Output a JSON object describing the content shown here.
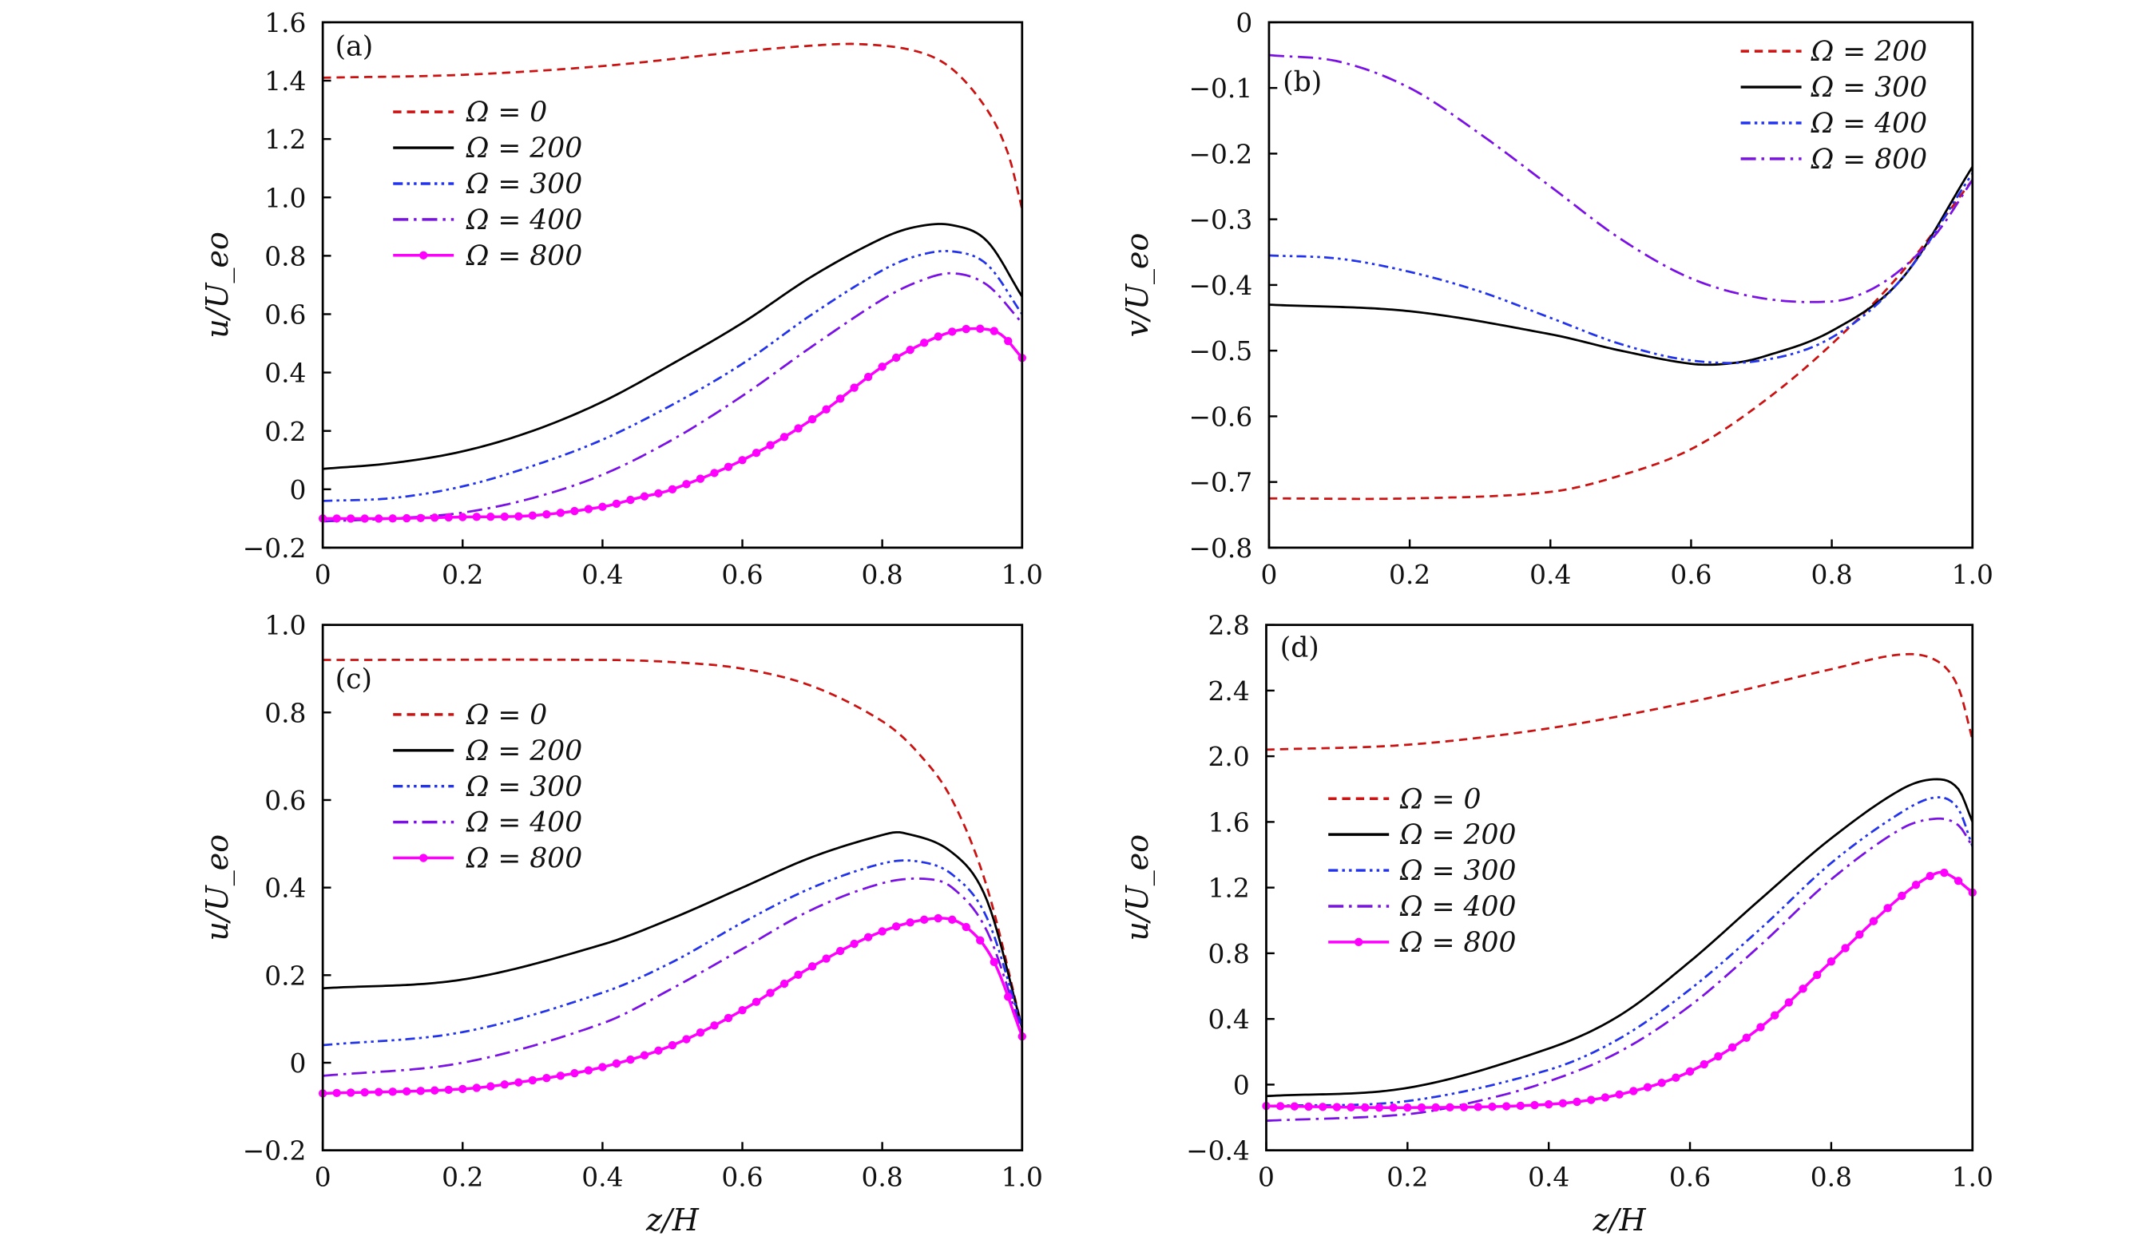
{
  "chart_data": [
    {
      "type": "line",
      "panel_label": "(a)",
      "xlabel": "",
      "ylabel": "u/U_eo",
      "xlim": [
        0,
        1.0
      ],
      "ylim": [
        -0.2,
        1.6
      ],
      "xticks": [
        "0",
        "0.2",
        "0.4",
        "0.6",
        "0.8",
        "1.0"
      ],
      "yticks": [
        "−0.2",
        "0",
        "0.2",
        "0.4",
        "0.6",
        "0.8",
        "1.0",
        "1.2",
        "1.4",
        "1.6"
      ],
      "legend_position": "upper-left",
      "series": [
        {
          "name": "Ω = 0",
          "color": "#cc1111",
          "style": "dashed",
          "x": [
            0,
            0.2,
            0.4,
            0.6,
            0.7,
            0.77,
            0.85,
            0.9,
            0.95,
            0.98,
            1.0
          ],
          "y": [
            1.41,
            1.42,
            1.45,
            1.5,
            1.52,
            1.525,
            1.5,
            1.44,
            1.3,
            1.15,
            0.96
          ]
        },
        {
          "name": "Ω = 200",
          "color": "#000000",
          "style": "solid",
          "x": [
            0,
            0.1,
            0.2,
            0.3,
            0.4,
            0.5,
            0.6,
            0.7,
            0.8,
            0.85,
            0.9,
            0.95,
            1.0
          ],
          "y": [
            0.07,
            0.09,
            0.13,
            0.2,
            0.3,
            0.43,
            0.57,
            0.73,
            0.86,
            0.9,
            0.905,
            0.85,
            0.66
          ]
        },
        {
          "name": "Ω = 300",
          "color": "#2233ee",
          "style": "dash-dot-dot",
          "x": [
            0,
            0.1,
            0.2,
            0.3,
            0.4,
            0.5,
            0.6,
            0.7,
            0.8,
            0.85,
            0.9,
            0.95,
            1.0
          ],
          "y": [
            -0.04,
            -0.03,
            0.01,
            0.08,
            0.17,
            0.29,
            0.43,
            0.6,
            0.75,
            0.8,
            0.815,
            0.77,
            0.6
          ]
        },
        {
          "name": "Ω = 400",
          "color": "#7a10e6",
          "style": "dash-dot",
          "x": [
            0,
            0.1,
            0.2,
            0.3,
            0.4,
            0.5,
            0.6,
            0.7,
            0.8,
            0.85,
            0.9,
            0.95,
            1.0
          ],
          "y": [
            -0.11,
            -0.1,
            -0.08,
            -0.03,
            0.05,
            0.17,
            0.32,
            0.49,
            0.65,
            0.71,
            0.74,
            0.7,
            0.57
          ]
        },
        {
          "name": "Ω = 800",
          "color": "#ff00ff",
          "style": "solid-markers",
          "x": [
            0,
            0.1,
            0.2,
            0.3,
            0.4,
            0.45,
            0.5,
            0.6,
            0.7,
            0.8,
            0.85,
            0.9,
            0.94,
            0.97,
            1.0
          ],
          "y": [
            -0.1,
            -0.1,
            -0.095,
            -0.09,
            -0.06,
            -0.03,
            0.0,
            0.1,
            0.24,
            0.42,
            0.49,
            0.54,
            0.55,
            0.53,
            0.45
          ]
        }
      ]
    },
    {
      "type": "line",
      "panel_label": "(b)",
      "xlabel": "",
      "ylabel": "v/U_eo",
      "xlim": [
        0,
        1.0
      ],
      "ylim": [
        -0.8,
        0
      ],
      "xticks": [
        "0",
        "0.2",
        "0.4",
        "0.6",
        "0.8",
        "1.0"
      ],
      "yticks": [
        "−0.8",
        "−0.7",
        "−0.6",
        "−0.5",
        "−0.4",
        "−0.3",
        "−0.2",
        "−0.1",
        "0"
      ],
      "legend_position": "upper-right",
      "series": [
        {
          "name": "Ω = 200",
          "color": "#cc1111",
          "style": "dashed",
          "x": [
            0,
            0.2,
            0.4,
            0.5,
            0.6,
            0.7,
            0.8,
            0.9,
            1.0
          ],
          "y": [
            -0.725,
            -0.725,
            -0.715,
            -0.69,
            -0.65,
            -0.58,
            -0.49,
            -0.38,
            -0.24
          ]
        },
        {
          "name": "Ω = 300",
          "color": "#000000",
          "style": "solid",
          "x": [
            0,
            0.2,
            0.4,
            0.5,
            0.6,
            0.65,
            0.7,
            0.8,
            0.9,
            1.0
          ],
          "y": [
            -0.43,
            -0.44,
            -0.475,
            -0.5,
            -0.52,
            -0.52,
            -0.51,
            -0.47,
            -0.39,
            -0.22
          ]
        },
        {
          "name": "Ω = 400",
          "color": "#2233ee",
          "style": "dash-dot-dot",
          "x": [
            0,
            0.1,
            0.2,
            0.3,
            0.4,
            0.5,
            0.6,
            0.7,
            0.8,
            0.9,
            1.0
          ],
          "y": [
            -0.355,
            -0.36,
            -0.38,
            -0.41,
            -0.45,
            -0.49,
            -0.515,
            -0.515,
            -0.48,
            -0.39,
            -0.23
          ]
        },
        {
          "name": "Ω = 800",
          "color": "#7a10e6",
          "style": "dash-dot",
          "x": [
            0,
            0.1,
            0.2,
            0.3,
            0.4,
            0.5,
            0.6,
            0.7,
            0.8,
            0.85,
            0.9,
            0.95,
            1.0
          ],
          "y": [
            -0.05,
            -0.06,
            -0.1,
            -0.17,
            -0.25,
            -0.33,
            -0.39,
            -0.42,
            -0.425,
            -0.41,
            -0.375,
            -0.32,
            -0.24
          ]
        }
      ]
    },
    {
      "type": "line",
      "panel_label": "(c)",
      "xlabel": "z/H",
      "ylabel": "u/U_eo",
      "xlim": [
        0,
        1.0
      ],
      "ylim": [
        -0.2,
        1.0
      ],
      "xticks": [
        "0",
        "0.2",
        "0.4",
        "0.6",
        "0.8",
        "1.0"
      ],
      "yticks": [
        "−0.2",
        "0",
        "0.2",
        "0.4",
        "0.6",
        "0.8",
        "1.0"
      ],
      "legend_position": "upper-left",
      "series": [
        {
          "name": "Ω = 0",
          "color": "#cc1111",
          "style": "dashed",
          "x": [
            0,
            0.4,
            0.5,
            0.6,
            0.7,
            0.8,
            0.85,
            0.9,
            0.95,
            1.0
          ],
          "y": [
            0.92,
            0.92,
            0.915,
            0.9,
            0.86,
            0.78,
            0.71,
            0.6,
            0.4,
            0.08
          ]
        },
        {
          "name": "Ω = 200",
          "color": "#000000",
          "style": "solid",
          "x": [
            0,
            0.2,
            0.4,
            0.5,
            0.6,
            0.7,
            0.8,
            0.83,
            0.9,
            0.95,
            1.0
          ],
          "y": [
            0.17,
            0.19,
            0.27,
            0.33,
            0.4,
            0.47,
            0.52,
            0.525,
            0.48,
            0.37,
            0.08
          ]
        },
        {
          "name": "Ω = 300",
          "color": "#2233ee",
          "style": "dash-dot-dot",
          "x": [
            0,
            0.2,
            0.4,
            0.5,
            0.6,
            0.7,
            0.8,
            0.85,
            0.9,
            0.95,
            1.0
          ],
          "y": [
            0.04,
            0.07,
            0.16,
            0.23,
            0.32,
            0.4,
            0.455,
            0.46,
            0.43,
            0.33,
            0.08
          ]
        },
        {
          "name": "Ω = 400",
          "color": "#7a10e6",
          "style": "dash-dot",
          "x": [
            0,
            0.2,
            0.4,
            0.5,
            0.6,
            0.7,
            0.8,
            0.86,
            0.9,
            0.95,
            1.0
          ],
          "y": [
            -0.03,
            0.0,
            0.09,
            0.17,
            0.26,
            0.35,
            0.41,
            0.42,
            0.4,
            0.3,
            0.07
          ]
        },
        {
          "name": "Ω = 800",
          "color": "#ff00ff",
          "style": "solid-markers",
          "x": [
            0,
            0.2,
            0.3,
            0.4,
            0.5,
            0.6,
            0.7,
            0.8,
            0.88,
            0.92,
            0.96,
            1.0
          ],
          "y": [
            -0.07,
            -0.06,
            -0.04,
            -0.01,
            0.04,
            0.12,
            0.22,
            0.3,
            0.33,
            0.31,
            0.23,
            0.06
          ]
        }
      ]
    },
    {
      "type": "line",
      "panel_label": "(d)",
      "xlabel": "z/H",
      "ylabel": "u/U_eo",
      "xlim": [
        0,
        1.0
      ],
      "ylim": [
        -0.4,
        2.8
      ],
      "xticks": [
        "0",
        "0.2",
        "0.4",
        "0.6",
        "0.8",
        "1.0"
      ],
      "yticks": [
        "−0.4",
        "0",
        "0.4",
        "0.8",
        "1.2",
        "1.6",
        "2.0",
        "2.4",
        "2.8"
      ],
      "legend_position": "center-left",
      "series": [
        {
          "name": "Ω = 0",
          "color": "#cc1111",
          "style": "dashed",
          "x": [
            0,
            0.2,
            0.4,
            0.6,
            0.8,
            0.9,
            0.95,
            0.98,
            1.0
          ],
          "y": [
            2.04,
            2.07,
            2.17,
            2.33,
            2.53,
            2.62,
            2.58,
            2.42,
            2.1
          ]
        },
        {
          "name": "Ω = 200",
          "color": "#000000",
          "style": "solid",
          "x": [
            0,
            0.2,
            0.4,
            0.5,
            0.6,
            0.7,
            0.8,
            0.9,
            0.95,
            0.98,
            1.0
          ],
          "y": [
            -0.07,
            -0.02,
            0.22,
            0.42,
            0.75,
            1.13,
            1.5,
            1.8,
            1.86,
            1.8,
            1.6
          ]
        },
        {
          "name": "Ω = 300",
          "color": "#2233ee",
          "style": "dash-dot-dot",
          "x": [
            0,
            0.2,
            0.4,
            0.5,
            0.6,
            0.7,
            0.8,
            0.9,
            0.95,
            0.98,
            1.0
          ],
          "y": [
            -0.13,
            -0.1,
            0.09,
            0.28,
            0.58,
            0.95,
            1.35,
            1.66,
            1.75,
            1.68,
            1.45
          ]
        },
        {
          "name": "Ω = 400",
          "color": "#7a10e6",
          "style": "dash-dot",
          "x": [
            0,
            0.2,
            0.3,
            0.4,
            0.5,
            0.6,
            0.7,
            0.8,
            0.9,
            0.95,
            0.98,
            1.0
          ],
          "y": [
            -0.22,
            -0.18,
            -0.1,
            0.02,
            0.2,
            0.48,
            0.85,
            1.25,
            1.56,
            1.62,
            1.58,
            1.45
          ]
        },
        {
          "name": "Ω = 800",
          "color": "#ff00ff",
          "style": "solid-markers",
          "x": [
            0,
            0.2,
            0.4,
            0.5,
            0.6,
            0.7,
            0.8,
            0.9,
            0.95,
            0.97,
            1.0
          ],
          "y": [
            -0.13,
            -0.14,
            -0.12,
            -0.06,
            0.08,
            0.35,
            0.75,
            1.15,
            1.29,
            1.27,
            1.17
          ]
        }
      ]
    }
  ]
}
